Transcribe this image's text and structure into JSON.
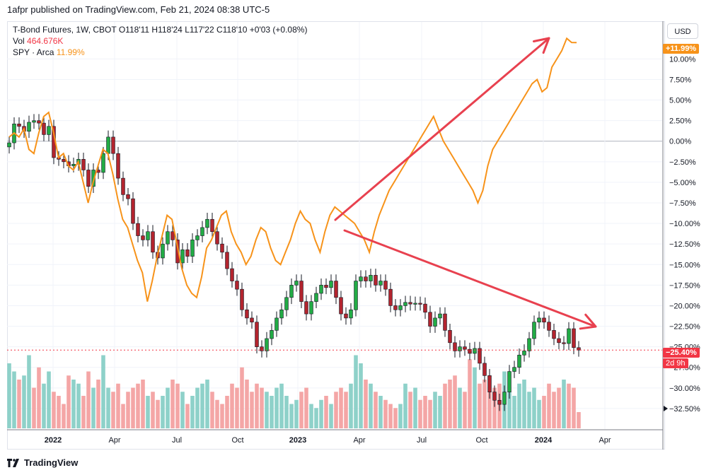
{
  "header": {
    "text": "1afpr published on TradingView.com, Feb 21, 2024 08:38 UTC-5"
  },
  "legend": {
    "line1_symbol": "T-Bond Futures, 1W, CBOT",
    "line1_o": "O118'11",
    "line1_h": "H118'24",
    "line1_l": "L117'22",
    "line1_c": "C118'10",
    "line1_chg": "+0'03 (+0.08%)",
    "vol_label": "Vol",
    "vol_value": "464.676K",
    "spy_label": "SPY · Arca",
    "spy_value": "11.99%"
  },
  "currency_button": "USD",
  "price_badges": {
    "spy": "+11.99%",
    "tbond": "−25.40%",
    "countdown": "2d 9h"
  },
  "footer": {
    "brand": "TradingView"
  },
  "colors": {
    "up": "#26a69a",
    "up_fill": "#22ab45",
    "down": "#b2242e",
    "spy_line": "#f7931a",
    "arrow": "#e8414f",
    "vol_up": "#8ed1c9",
    "vol_down": "#f4a6a6"
  },
  "chart_data": {
    "type": "candlestick",
    "title": "T-Bond Futures, 1W, CBOT",
    "ylabel": "",
    "y_unit": "%",
    "ylim": [
      -35,
      14.5
    ],
    "y_ticks": [
      10,
      7.5,
      5,
      2.5,
      0,
      -2.5,
      -5,
      -7.5,
      -10,
      -12.5,
      -15,
      -17.5,
      -20,
      -22.5,
      -25,
      -27.5,
      -30,
      -32.5
    ],
    "y_tick_labels": [
      "10.00%",
      "7.50%",
      "5.00%",
      "2.50%",
      "0.00%",
      "−2.50%",
      "−5.00%",
      "−7.50%",
      "−10.00%",
      "−12.50%",
      "−15.00%",
      "−17.50%",
      "−20.00%",
      "−22.50%",
      "−25.00%",
      "−27.50%",
      "−30.00%",
      "−32.50%"
    ],
    "x_ticks": [
      "2022",
      "Apr",
      "Jul",
      "Oct",
      "2023",
      "Apr",
      "Jul",
      "Oct",
      "2024",
      "Apr"
    ],
    "grid": true,
    "last_tbond_pct": -25.4,
    "series": [
      {
        "name": "T-Bond Futures",
        "close_pct": [
          -0.2,
          2.1,
          1.8,
          1.2,
          2.3,
          2.5,
          2.2,
          0.8,
          1.8,
          -2.0,
          -2.2,
          -2.5,
          -3.0,
          -2.8,
          -2.2,
          -3.5,
          -5.5,
          -3.5,
          -3.8,
          -1.5,
          0.5,
          -1.5,
          -4.5,
          -6.5,
          -7.0,
          -10.0,
          -11.5,
          -12.0,
          -11.0,
          -13.5,
          -14.2,
          -12.5,
          -11.0,
          -12.0,
          -14.8,
          -13.2,
          -14.0,
          -12.0,
          -11.5,
          -10.5,
          -9.5,
          -11.0,
          -12.5,
          -13.5,
          -15.5,
          -17.0,
          -18.0,
          -20.5,
          -21.5,
          -22.0,
          -25.0,
          -25.5,
          -24.0,
          -23.0,
          -21.5,
          -20.5,
          -19.0,
          -17.5,
          -17.0,
          -19.5,
          -21.0,
          -19.5,
          -18.5,
          -17.5,
          -17.8,
          -17.0,
          -19.0,
          -21.0,
          -21.5,
          -20.5,
          -17.0,
          -16.5,
          -17.0,
          -16.3,
          -17.5,
          -17.0,
          -18.0,
          -20.0,
          -20.5,
          -20.0,
          -19.6,
          -19.8,
          -19.7,
          -19.8,
          -20.8,
          -22.5,
          -21.5,
          -21.0,
          -23.0,
          -24.5,
          -25.5,
          -25.0,
          -25.3,
          -25.8,
          -25.2,
          -27.0,
          -28.5,
          -30.5,
          -31.5,
          -32.0,
          -30.5,
          -28.0,
          -27.5,
          -26.0,
          -25.5,
          -24.0,
          -22.0,
          -21.5,
          -22.0,
          -23.0,
          -24.0,
          -24.5,
          -24.6,
          -22.8,
          -25.1,
          -25.4
        ]
      },
      {
        "name": "SPY · Arca",
        "values_pct": [
          0.5,
          1.0,
          0.5,
          1.5,
          -1.0,
          -1.5,
          1.0,
          3.0,
          3.5,
          1.0,
          -2.0,
          -1.5,
          -3.0,
          -3.5,
          -2.5,
          -5.0,
          -7.5,
          -5.0,
          -3.0,
          -1.0,
          -1.5,
          -4.0,
          -7.0,
          -9.5,
          -10.5,
          -12.5,
          -14.5,
          -16.0,
          -19.5,
          -17.0,
          -14.0,
          -11.5,
          -9.0,
          -9.5,
          -12.5,
          -15.5,
          -17.5,
          -18.5,
          -19.0,
          -16.5,
          -13.0,
          -12.0,
          -10.5,
          -9.0,
          -8.5,
          -11.0,
          -12.5,
          -13.5,
          -15.0,
          -14.0,
          -12.0,
          -10.5,
          -11.0,
          -13.0,
          -14.5,
          -15.0,
          -13.5,
          -12.0,
          -10.0,
          -8.5,
          -9.5,
          -10.0,
          -12.0,
          -13.5,
          -11.0,
          -9.0,
          -8.0,
          -8.5,
          -9.0,
          -9.5,
          -10.0,
          -11.0,
          -12.0,
          -13.5,
          -11.0,
          -9.0,
          -7.5,
          -6.0,
          -5.0,
          -4.0,
          -3.0,
          -2.0,
          -1.0,
          0.0,
          1.0,
          2.0,
          3.0,
          1.5,
          0.0,
          -1.0,
          -2.0,
          -3.0,
          -4.0,
          -5.0,
          -6.0,
          -7.5,
          -6.0,
          -3.0,
          -1.0,
          0.0,
          1.0,
          2.0,
          3.0,
          4.0,
          5.0,
          6.0,
          7.0,
          7.5,
          6.0,
          6.5,
          9.0,
          10.0,
          11.0,
          12.5,
          12.0,
          11.99
        ]
      },
      {
        "name": "Vol",
        "relative_values": [
          0.8,
          0.7,
          0.6,
          0.65,
          0.9,
          0.5,
          0.75,
          0.55,
          0.7,
          0.45,
          0.4,
          0.3,
          0.65,
          0.6,
          0.55,
          0.4,
          0.7,
          0.5,
          0.6,
          0.9,
          0.5,
          0.45,
          0.55,
          0.3,
          0.45,
          0.5,
          0.55,
          0.6,
          0.4,
          0.45,
          0.35,
          0.4,
          0.5,
          0.6,
          0.55,
          0.45,
          0.3,
          0.4,
          0.5,
          0.55,
          0.6,
          0.45,
          0.35,
          0.3,
          0.4,
          0.55,
          0.5,
          0.75,
          0.6,
          0.45,
          0.55,
          0.5,
          0.45,
          0.4,
          0.5,
          0.55,
          0.4,
          0.3,
          0.35,
          0.45,
          0.5,
          0.3,
          0.25,
          0.35,
          0.4,
          0.3,
          0.45,
          0.5,
          0.45,
          0.55,
          0.9,
          0.8,
          0.6,
          0.55,
          0.45,
          0.4,
          0.35,
          0.3,
          0.25,
          0.3,
          0.55,
          0.45,
          0.5,
          0.35,
          0.4,
          0.35,
          0.45,
          0.4,
          0.55,
          0.6,
          0.65,
          0.5,
          0.45,
          0.85,
          0.75,
          0.55,
          0.6,
          0.45,
          0.5,
          0.55,
          0.7,
          0.45,
          0.4,
          0.55,
          0.6,
          0.45,
          0.5,
          0.35,
          0.4,
          0.55,
          0.45,
          0.5,
          0.6,
          0.55,
          0.5,
          0.2
        ],
        "up_flags": [
          1,
          1,
          0,
          1,
          1,
          0,
          0,
          1,
          1,
          0,
          0,
          0,
          0,
          1,
          1,
          0,
          0,
          1,
          0,
          1,
          1,
          0,
          0,
          0,
          0,
          0,
          0,
          0,
          1,
          0,
          0,
          1,
          1,
          0,
          0,
          1,
          0,
          1,
          1,
          1,
          1,
          0,
          0,
          0,
          0,
          0,
          0,
          0,
          0,
          0,
          0,
          0,
          1,
          1,
          1,
          1,
          1,
          1,
          1,
          0,
          0,
          1,
          1,
          1,
          0,
          1,
          0,
          0,
          0,
          1,
          1,
          1,
          0,
          1,
          0,
          1,
          0,
          0,
          0,
          1,
          1,
          0,
          1,
          0,
          0,
          0,
          1,
          1,
          0,
          0,
          0,
          1,
          0,
          0,
          1,
          0,
          0,
          0,
          0,
          0,
          1,
          1,
          1,
          1,
          1,
          1,
          1,
          1,
          0,
          0,
          0,
          0,
          1,
          0,
          0,
          0
        ]
      }
    ]
  }
}
